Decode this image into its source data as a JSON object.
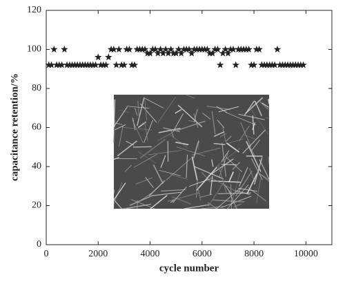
{
  "chart_data": {
    "type": "scatter",
    "x_label": "cycle number",
    "y_label": "capacitance retention/%",
    "marker": "star",
    "color": "#222222",
    "xlim": [
      0,
      11000
    ],
    "xticks": [
      0,
      2000,
      4000,
      6000,
      8000,
      10000
    ],
    "ylim": [
      0,
      120
    ],
    "yticks": [
      0,
      20,
      40,
      60,
      80,
      100,
      120
    ],
    "x": [
      100,
      200,
      300,
      400,
      500,
      600,
      700,
      800,
      900,
      1000,
      1100,
      1200,
      1300,
      1400,
      1500,
      1600,
      1700,
      1800,
      1900,
      2000,
      2100,
      2200,
      2300,
      2400,
      2500,
      2600,
      2700,
      2800,
      2900,
      3000,
      3100,
      3200,
      3300,
      3400,
      3500,
      3600,
      3700,
      3800,
      3900,
      4000,
      4100,
      4200,
      4300,
      4400,
      4500,
      4600,
      4700,
      4800,
      4900,
      5000,
      5100,
      5200,
      5300,
      5400,
      5500,
      5600,
      5700,
      5800,
      5900,
      6000,
      6100,
      6200,
      6300,
      6400,
      6500,
      6600,
      6700,
      6800,
      6900,
      7000,
      7100,
      7200,
      7300,
      7400,
      7500,
      7600,
      7700,
      7800,
      7900,
      8000,
      8100,
      8200,
      8300,
      8400,
      8500,
      8600,
      8700,
      8800,
      8900,
      9000,
      9100,
      9200,
      9300,
      9400,
      9500,
      9600,
      9700,
      9800,
      9900
    ],
    "values": [
      92,
      92,
      100,
      92,
      92,
      92,
      100,
      92,
      92,
      92,
      92,
      92,
      92,
      92,
      92,
      92,
      92,
      92,
      92,
      96,
      92,
      92,
      92,
      96,
      100,
      100,
      92,
      100,
      92,
      92,
      100,
      100,
      92,
      92,
      100,
      100,
      100,
      100,
      98,
      98,
      100,
      100,
      98,
      100,
      98,
      100,
      98,
      100,
      98,
      98,
      100,
      98,
      100,
      100,
      100,
      98,
      100,
      100,
      100,
      100,
      100,
      100,
      98,
      98,
      100,
      100,
      92,
      98,
      100,
      98,
      100,
      100,
      92,
      100,
      100,
      100,
      100,
      100,
      92,
      92,
      100,
      100,
      92,
      92,
      92,
      92,
      92,
      92,
      100,
      92,
      92,
      92,
      92,
      92,
      92,
      92,
      92,
      92,
      92
    ]
  }
}
